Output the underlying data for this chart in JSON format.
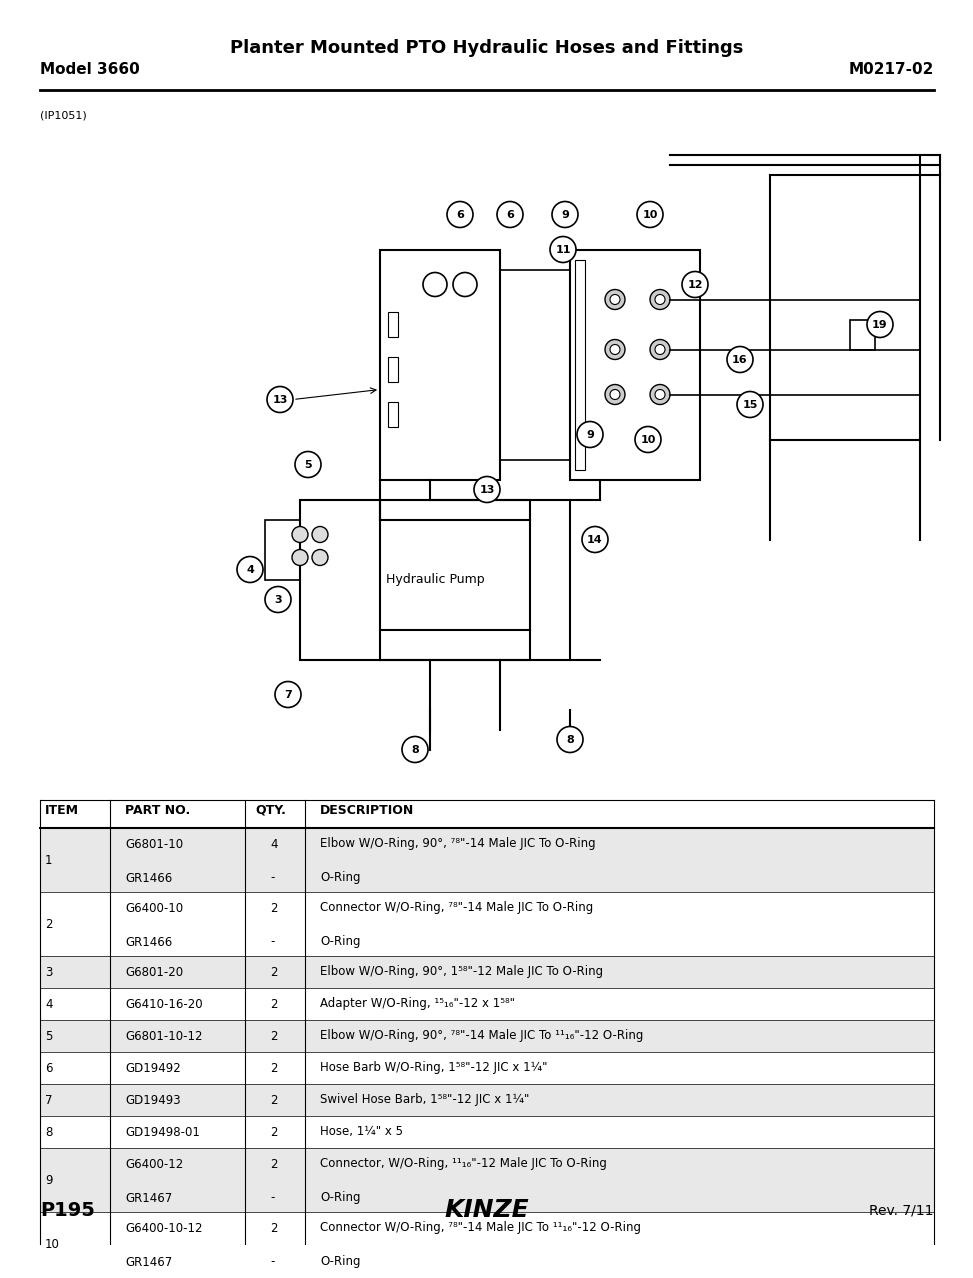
{
  "title": "Planter Mounted PTO Hydraulic Hoses and Fittings",
  "model": "Model 3660",
  "part_number": "M0217-02",
  "image_code": "(IP1051)",
  "page": "P195",
  "rev": "Rev. 7/11",
  "table_headers": [
    "ITEM",
    "PART NO.",
    "QTY.",
    "DESCRIPTION"
  ],
  "table_rows": [
    [
      "1",
      "G6801-10\nGR1466",
      "4\n-",
      "Elbow W/O-Ring, 90°, ⁷₈\"-14 Male JIC To O-Ring\nO-Ring"
    ],
    [
      "2",
      "G6400-10\nGR1466",
      "2\n-",
      "Connector W/O-Ring, ⁷₈\"-14 Male JIC To O-Ring\nO-Ring"
    ],
    [
      "3",
      "G6801-20",
      "2",
      "Elbow W/O-Ring, 90°, 1⁵₈\"-12 Male JIC To O-Ring"
    ],
    [
      "4",
      "G6410-16-20",
      "2",
      "Adapter W/O-Ring, ¹⁵₁₆\"-12 x 1⁵₈\""
    ],
    [
      "5",
      "G6801-10-12",
      "2",
      "Elbow W/O-Ring, 90°, ⁷₈\"-14 Male JIC To ¹¹₁₆\"-12 O-Ring"
    ],
    [
      "6",
      "GD19492",
      "2",
      "Hose Barb W/O-Ring, 1⁵₈\"-12 JIC x 1¼\""
    ],
    [
      "7",
      "GD19493",
      "2",
      "Swivel Hose Barb, 1⁵₈\"-12 JIC x 1¼\""
    ],
    [
      "8",
      "GD19498-01",
      "2",
      "Hose, 1¼\" x 5"
    ],
    [
      "9",
      "G6400-12\nGR1467",
      "2\n-",
      "Connector, W/O-Ring, ¹¹₁₆\"-12 Male JIC To O-Ring\nO-Ring"
    ],
    [
      "10",
      "G6400-10-12\nGR1467",
      "2\n-",
      "Connector W/O-Ring, ⁷₈\"-14 Male JIC To ¹¹₁₆\"-12 O-Ring\nO-Ring"
    ]
  ],
  "bg_color": "#ffffff",
  "table_alt_color": "#e8e8e8",
  "line_color": "#000000"
}
